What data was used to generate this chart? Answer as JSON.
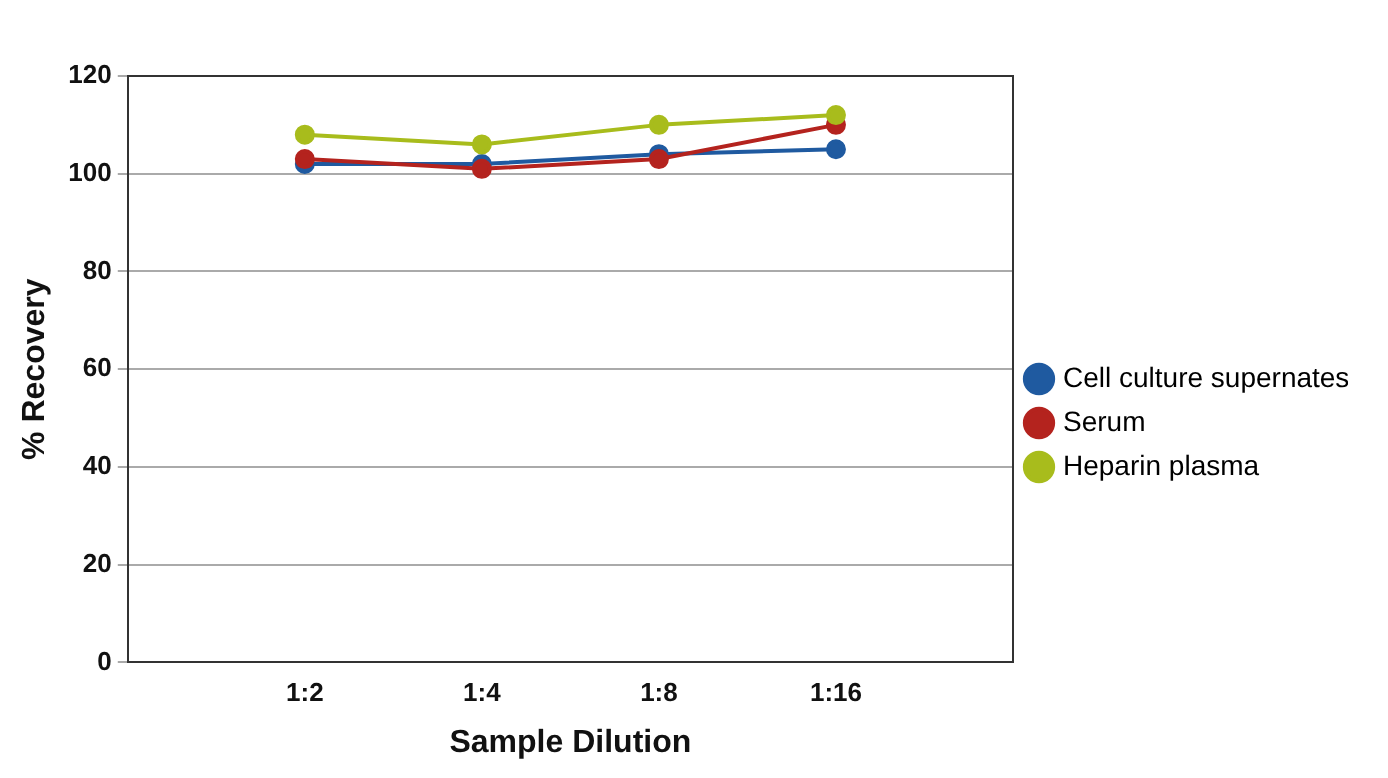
{
  "chart_data": {
    "type": "line",
    "xlabel": "Sample Dilution",
    "ylabel": "% Recovery",
    "categories": [
      null,
      "1:2",
      "1:4",
      "1:8",
      "1:16",
      null
    ],
    "series": [
      {
        "name": "Cell culture supernates",
        "color": "#1f5aa0",
        "values": [
          null,
          102,
          102,
          104,
          105,
          null
        ]
      },
      {
        "name": "Serum",
        "color": "#b4231e",
        "values": [
          null,
          103,
          101,
          103,
          110,
          null
        ]
      },
      {
        "name": "Heparin plasma",
        "color": "#a8bc1c",
        "values": [
          null,
          108,
          106,
          110,
          112,
          null
        ]
      }
    ],
    "ylim": [
      0,
      120
    ],
    "yticks": [
      0,
      20,
      40,
      60,
      80,
      100,
      120
    ],
    "grid": "y",
    "legend": "right",
    "marker": "circle",
    "line_style": "solid"
  }
}
